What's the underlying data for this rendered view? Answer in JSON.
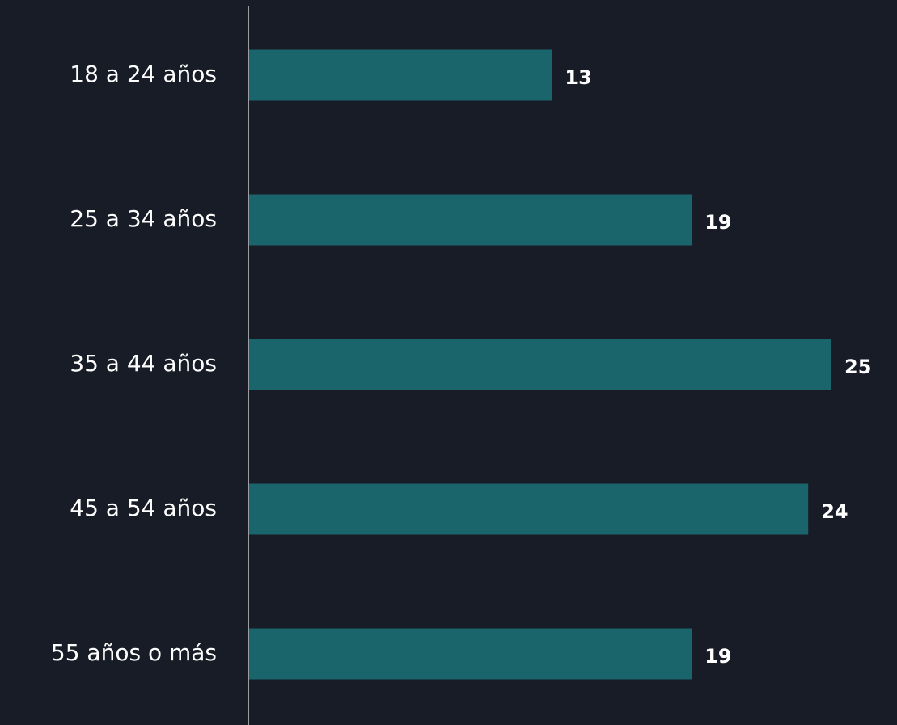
{
  "chart_data": {
    "type": "bar",
    "orientation": "horizontal",
    "categories": [
      "18 a 24 años",
      "25 a 34 años",
      "35 a 44 años",
      "45 a 54 años",
      "55 años o más"
    ],
    "values": [
      13,
      19,
      25,
      24,
      19
    ],
    "color": "#1a656b"
  }
}
